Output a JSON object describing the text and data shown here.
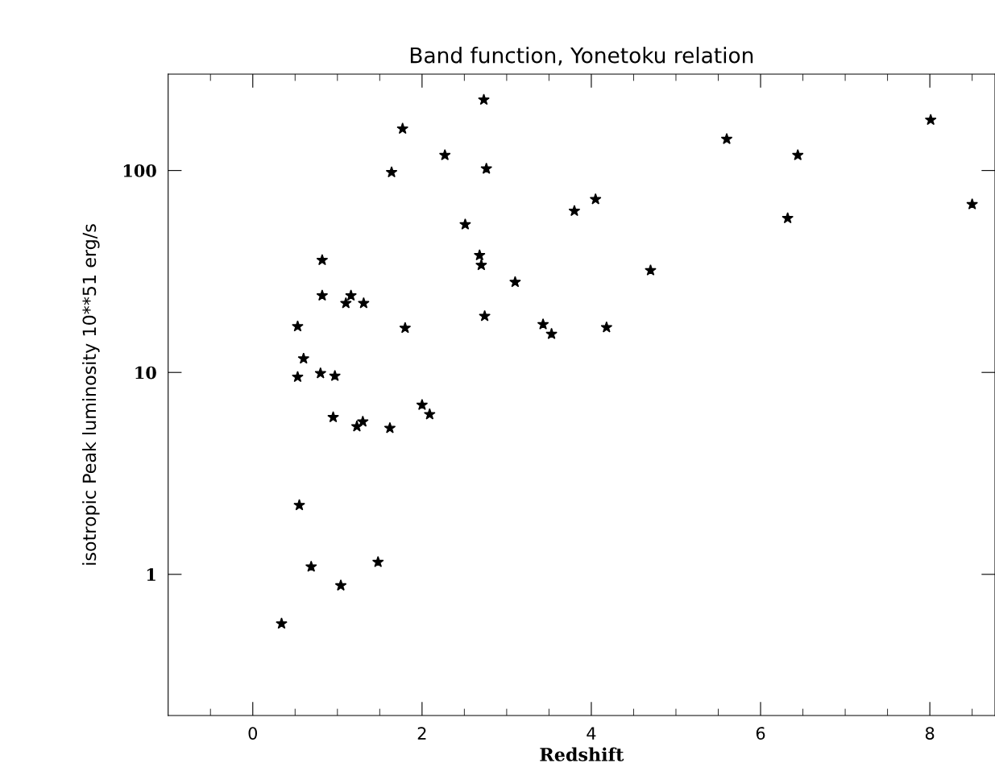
{
  "chart_data": {
    "type": "scatter",
    "title": "Band function, Yonetoku relation",
    "xlabel": "Redshift",
    "ylabel": "isotropic Peak luminosity 10**51 erg/s",
    "log": "y",
    "marker": "star",
    "grid": false,
    "series": [
      {
        "color": "#000000",
        "x": [
          0.34,
          0.55,
          0.69,
          1.04,
          1.48,
          0.53,
          0.53,
          0.6,
          0.8,
          0.97,
          0.82,
          0.82,
          1.1,
          1.16,
          1.31,
          0.95,
          1.23,
          1.3,
          1.62,
          1.8,
          2.0,
          2.09,
          2.68,
          2.7,
          3.1,
          2.74,
          2.73,
          1.77,
          2.27,
          1.64,
          2.76,
          2.51,
          3.8,
          4.05,
          4.7,
          3.43,
          3.53,
          4.18,
          5.6,
          6.44,
          6.32,
          8.01,
          8.5
        ],
        "values": [
          0.57,
          2.2,
          1.09,
          0.88,
          1.15,
          16.9,
          9.5,
          11.7,
          9.9,
          9.6,
          36,
          24,
          22,
          24,
          22,
          6.0,
          5.4,
          5.7,
          5.3,
          16.6,
          6.9,
          6.2,
          38,
          34,
          28,
          19,
          224,
          161,
          119,
          98,
          102,
          54,
          63,
          72,
          32,
          17.3,
          15.5,
          16.7,
          143,
          119,
          58,
          178,
          68
        ]
      }
    ],
    "xlim": [
      -1,
      8.77
    ],
    "ylim": [
      0.2,
      300
    ],
    "xticks": [
      {
        "value": -0.5,
        "label": null
      },
      0,
      {
        "value": 0.5,
        "label": null
      },
      {
        "value": 1,
        "label": null
      },
      {
        "value": 1.5,
        "label": null
      },
      2,
      {
        "value": 2.5,
        "label": null
      },
      {
        "value": 3,
        "label": null
      },
      {
        "value": 3.5,
        "label": null
      },
      4,
      {
        "value": 4.5,
        "label": null
      },
      {
        "value": 5,
        "label": null
      },
      {
        "value": 5.5,
        "label": null
      },
      6,
      {
        "value": 6.5,
        "label": null
      },
      {
        "value": 7,
        "label": null
      },
      {
        "value": 7.5,
        "label": null
      },
      8,
      {
        "value": 8.5,
        "label": null
      }
    ],
    "yticks": [
      1,
      10,
      100
    ]
  }
}
